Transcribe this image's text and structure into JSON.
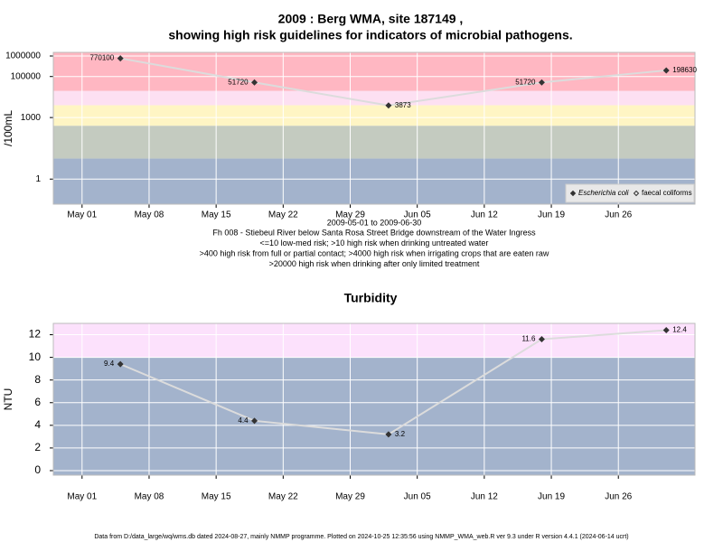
{
  "chart_data": [
    {
      "type": "line",
      "log_y": true,
      "grid": true,
      "legend": "lower right",
      "title": [
        "2009 : Berg WMA, site 187149 ,",
        "showing high risk guidelines for indicators of microbial pathogens."
      ],
      "ylabel": "/100mL",
      "xlabel": "2009-05-01 to 2009-06-30",
      "notes": [
        "Fh 008 - Stiebeul River below Santa Rosa Street Bridge downstream of the Water Ingress",
        "<=10 low-med risk; >10 high risk when drinking untreated water",
        ">400 high risk from full or partial contact; >4000 high risk when irrigating crops that are eaten raw",
        ">20000 high risk when drinking after only limited treatment"
      ],
      "x": [
        "2009-05-05",
        "2009-05-19",
        "2009-06-02",
        "2009-06-18",
        "2009-07-01"
      ],
      "xlim": [
        "2009-04-28",
        "2009-07-04"
      ],
      "xticks": [
        {
          "value": "2009-05-01",
          "label": "May 01"
        },
        {
          "value": "2009-05-08",
          "label": "May 08"
        },
        {
          "value": "2009-05-15",
          "label": "May 15"
        },
        {
          "value": "2009-05-22",
          "label": "May 22"
        },
        {
          "value": "2009-05-29",
          "label": "May 29"
        },
        {
          "value": "2009-06-05",
          "label": "Jun 05"
        },
        {
          "value": "2009-06-12",
          "label": "Jun 12"
        },
        {
          "value": "2009-06-19",
          "label": "Jun 19"
        },
        {
          "value": "2009-06-26",
          "label": "Jun 26"
        }
      ],
      "ylim": [
        0.06,
        1500000
      ],
      "yticks": [
        1,
        1000,
        100000,
        1000000
      ],
      "bands": [
        {
          "from": 0.06,
          "to": 10,
          "color": "#a3b3cc"
        },
        {
          "from": 10,
          "to": 400,
          "color": "#c4cbc0"
        },
        {
          "from": 400,
          "to": 4000,
          "color": "#fff5c4"
        },
        {
          "from": 4000,
          "to": 20000,
          "color": "#fde0f2"
        },
        {
          "from": 20000,
          "to": 1500000,
          "color": "#ffb7c2"
        }
      ],
      "series": [
        {
          "name": "Escherichia coli",
          "color": "#333333",
          "values": [
            770100,
            51720,
            3873,
            51720,
            198630
          ]
        },
        {
          "name": "faecal coliforms",
          "color": "#333333",
          "values": [
            null,
            null,
            null,
            null,
            null
          ]
        }
      ]
    },
    {
      "type": "line",
      "log_y": false,
      "grid": true,
      "title": [
        "Turbidity"
      ],
      "ylabel": "NTU",
      "x": [
        "2009-05-05",
        "2009-05-19",
        "2009-06-02",
        "2009-06-18",
        "2009-07-01"
      ],
      "xlim": [
        "2009-04-28",
        "2009-07-04"
      ],
      "xticks": [
        {
          "value": "2009-05-01",
          "label": "May 01"
        },
        {
          "value": "2009-05-08",
          "label": "May 08"
        },
        {
          "value": "2009-05-15",
          "label": "May 15"
        },
        {
          "value": "2009-05-22",
          "label": "May 22"
        },
        {
          "value": "2009-05-29",
          "label": "May 29"
        },
        {
          "value": "2009-06-05",
          "label": "Jun 05"
        },
        {
          "value": "2009-06-12",
          "label": "Jun 12"
        },
        {
          "value": "2009-06-19",
          "label": "Jun 19"
        },
        {
          "value": "2009-06-26",
          "label": "Jun 26"
        }
      ],
      "ylim": [
        -0.4,
        13
      ],
      "yticks": [
        0,
        2,
        4,
        6,
        8,
        10,
        12
      ],
      "bands": [
        {
          "from": -0.4,
          "to": 10,
          "color": "#a3b3cc"
        },
        {
          "from": 10,
          "to": 13,
          "color": "#fce1fc"
        }
      ],
      "series": [
        {
          "name": "Turbidity",
          "color": "#333333",
          "values": [
            9.4,
            4.4,
            3.2,
            11.6,
            12.4
          ]
        }
      ]
    }
  ],
  "footer": "Data from D:/data_large/wq/wms.db dated 2024-08-27, mainly NMMP programme. Plotted on 2024-10-25 12:35:56 using NMMP_WMA_web.R ver 9.3 under R version 4.4.1 (2024-06-14 ucrt)"
}
